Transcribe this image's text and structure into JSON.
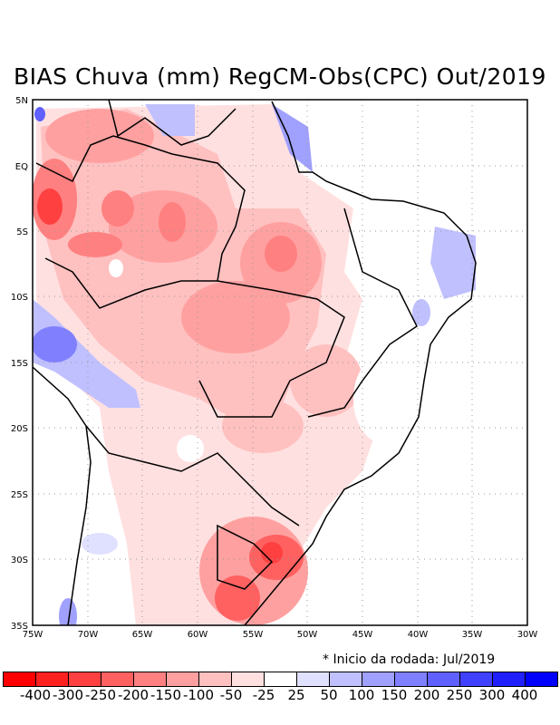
{
  "title": "BIAS Chuva (mm) RegCM-Obs(CPC) Out/2019",
  "note": "* Inicio da rodada: Jul/2019",
  "axes": {
    "lon_labels": [
      "75W",
      "70W",
      "65W",
      "60W",
      "55W",
      "50W",
      "45W",
      "40W",
      "35W",
      "30W"
    ],
    "lat_labels": [
      "5N",
      "EQ",
      "5S",
      "10S",
      "15S",
      "20S",
      "25S",
      "30S",
      "35S"
    ]
  },
  "colorbar": {
    "labels": [
      "-400",
      "-300",
      "-250",
      "-200",
      "-150",
      "-100",
      "-50",
      "-25",
      "25",
      "50",
      "100",
      "150",
      "200",
      "250",
      "300",
      "400"
    ],
    "colors": [
      "#ff0000",
      "#ff2020",
      "#ff4040",
      "#ff6060",
      "#ff8080",
      "#ffa0a0",
      "#ffc0c0",
      "#ffe0e0",
      "#ffffff",
      "#e0e0ff",
      "#c0c0ff",
      "#a0a0ff",
      "#8080ff",
      "#6060ff",
      "#4040ff",
      "#2020ff",
      "#0000ff"
    ]
  }
}
